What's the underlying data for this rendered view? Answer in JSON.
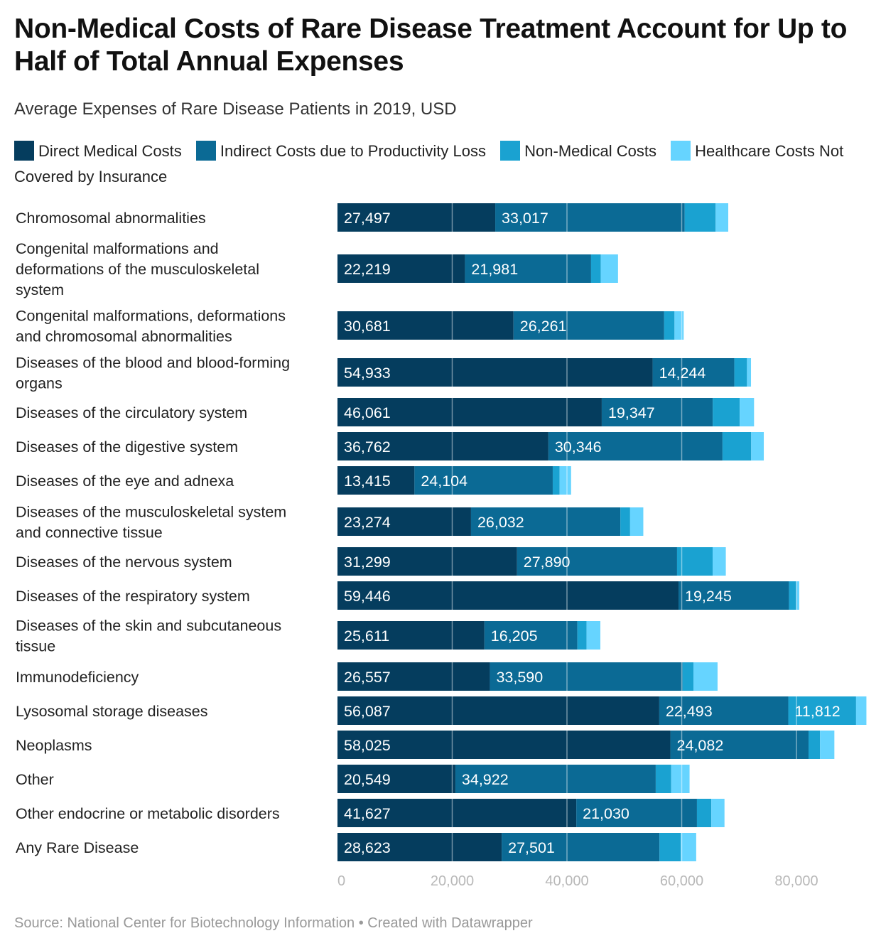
{
  "header": {
    "title": "Non-Medical Costs of Rare Disease Treatment Account for Up to Half of Total Annual Expenses",
    "subtitle": "Average Expenses of Rare Disease Patients in 2019, USD"
  },
  "legend": [
    {
      "label": "Direct Medical Costs",
      "color": "#053d5e"
    },
    {
      "label": "Indirect Costs due to Productivity Loss",
      "color": "#0b6a95"
    },
    {
      "label": "Non-Medical Costs",
      "color": "#1aa2d1"
    },
    {
      "label": "Healthcare Costs Not Covered by Insurance",
      "color": "#66d4ff"
    }
  ],
  "footer": {
    "source": "Source: National Center for Biotechnology Information • Created with Datawrapper"
  },
  "chart_data": {
    "type": "bar",
    "orientation": "horizontal",
    "stacked": true,
    "title": "Non-Medical Costs of Rare Disease Treatment Account for Up to Half of Total Annual Expenses",
    "subtitle": "Average Expenses of Rare Disease Patients in 2019, USD",
    "xlim": [
      0,
      92000
    ],
    "ticks": [
      0,
      20000,
      40000,
      60000,
      80000
    ],
    "tick_labels": [
      "0",
      "20,000",
      "40,000",
      "60,000",
      "80,000"
    ],
    "categories": [
      [
        "Chromosomal abnormalities"
      ],
      [
        "Congenital malformations and",
        "deformations of the musculoskeletal",
        "system"
      ],
      [
        "Congenital malformations, deformations",
        "and chromosomal abnormalities"
      ],
      [
        "Diseases of the blood and blood-forming",
        "organs"
      ],
      [
        "Diseases of the circulatory system"
      ],
      [
        "Diseases of the digestive system"
      ],
      [
        "Diseases of the eye and adnexa"
      ],
      [
        "Diseases of the musculoskeletal system",
        "and connective tissue"
      ],
      [
        "Diseases of the nervous system"
      ],
      [
        "Diseases of the respiratory system"
      ],
      [
        "Diseases of the skin and subcutaneous",
        "tissue"
      ],
      [
        "Immunodeficiency"
      ],
      [
        "Lysosomal storage diseases"
      ],
      [
        "Neoplasms"
      ],
      [
        "Other"
      ],
      [
        "Other endocrine or metabolic disorders"
      ],
      [
        "Any Rare Disease"
      ]
    ],
    "series": [
      {
        "name": "Direct Medical Costs",
        "color": "#053d5e",
        "values": [
          27497,
          22219,
          30681,
          54933,
          46061,
          36762,
          13415,
          23274,
          31299,
          59446,
          25611,
          26557,
          56087,
          58025,
          20549,
          41627,
          28623
        ],
        "labels": [
          "27,497",
          "22,219",
          "30,681",
          "54,933",
          "46,061",
          "36,762",
          "13,415",
          "23,274",
          "31,299",
          "59,446",
          "25,611",
          "26,557",
          "56,087",
          "58,025",
          "20,549",
          "41,627",
          "28,623"
        ]
      },
      {
        "name": "Indirect Costs due to Productivity Loss",
        "color": "#0b6a95",
        "values": [
          33017,
          21981,
          26261,
          14244,
          19347,
          30346,
          24104,
          26032,
          27890,
          19245,
          16205,
          33590,
          22493,
          24082,
          34922,
          21030,
          27501
        ],
        "labels": [
          "33,017",
          "21,981",
          "26,261",
          "14,244",
          "19,347",
          "30,346",
          "24,104",
          "26,032",
          "27,890",
          "19,245",
          "16,205",
          "33,590",
          "22,493",
          "24,082",
          "34,922",
          "21,030",
          "27,501"
        ]
      },
      {
        "name": "Non-Medical Costs",
        "color": "#1aa2d1",
        "values": [
          5400,
          1700,
          1800,
          2200,
          4700,
          5000,
          1200,
          1700,
          6200,
          1300,
          1600,
          1900,
          11812,
          2000,
          2700,
          2500,
          3700
        ],
        "labels": [
          "",
          "",
          "",
          "",
          "",
          "",
          "",
          "",
          "",
          "",
          "",
          "",
          "11,812",
          "",
          "",
          "",
          ""
        ]
      },
      {
        "name": "Healthcare Costs Not Covered by Insurance",
        "color": "#66d4ff",
        "values": [
          2200,
          3000,
          1600,
          700,
          2500,
          2200,
          2000,
          2300,
          2300,
          500,
          2400,
          4200,
          1800,
          2500,
          3200,
          2300,
          2700
        ],
        "labels": [
          "",
          "",
          "",
          "",
          "",
          "",
          "",
          "",
          "",
          "",
          "",
          "",
          "",
          "",
          "",
          "",
          ""
        ]
      }
    ]
  }
}
